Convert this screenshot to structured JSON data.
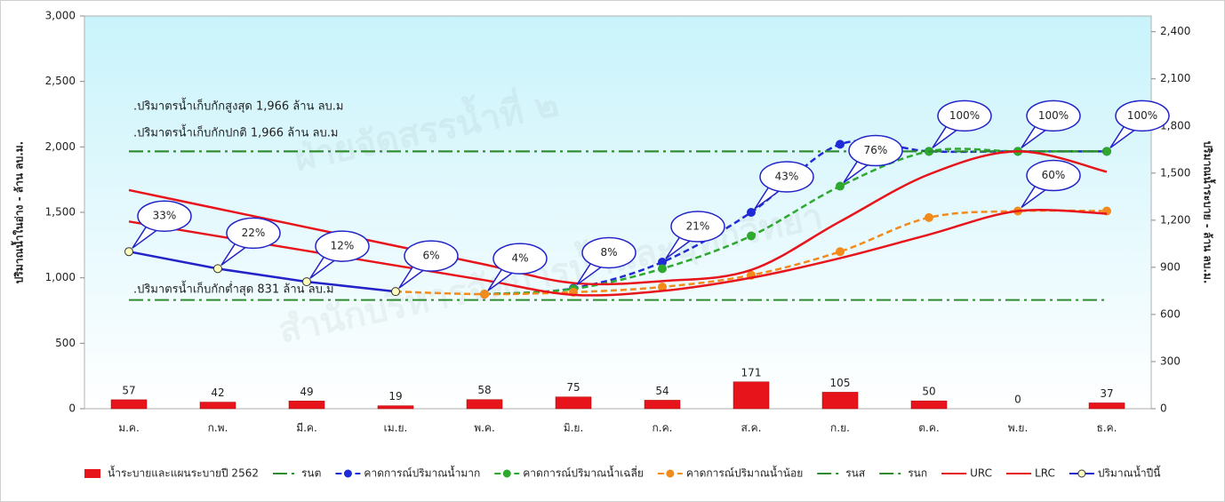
{
  "chart_data": {
    "type": "combo",
    "watermark": [
      "ฝ่ายจัดสรรน้ำที่ ๒",
      "สำนักบริหารจัดการน้ำและอุทกวิทยา"
    ],
    "ylabel": "ปริมาณน้ำในอ่าง - ล้าน ลบ.ม.",
    "y2label": "ปริมาณน้ำระบาย - ล้าน ลบ.ม.",
    "annotations": [
      ".ปริมาตรน้ำเก็บกักสูงสุด 1,966 ล้าน ลบ.ม",
      ".ปริมาตรน้ำเก็บกักปกติ 1,966 ล้าน ลบ.ม",
      ".ปริมาตรน้ำเก็บกักต่ำสุด 831 ล้าน ลบ.ม"
    ],
    "categories": [
      "ม.ค.",
      "ก.พ.",
      "มี.ค.",
      "เม.ย.",
      "พ.ค.",
      "มิ.ย.",
      "ก.ค.",
      "ส.ค.",
      "ก.ย.",
      "ต.ค.",
      "พ.ย.",
      "ธ.ค."
    ],
    "ylim": [
      0,
      3000
    ],
    "yticks": [
      0,
      500,
      {
        "value": 1000,
        "label": "1,000"
      },
      {
        "value": 1500,
        "label": "1,500"
      },
      {
        "value": 2000,
        "label": "2,000"
      },
      {
        "value": 2500,
        "label": "2,500"
      },
      {
        "value": 3000,
        "label": "3,000"
      }
    ],
    "y2lim": [
      0,
      2500
    ],
    "y2ticks": [
      0,
      300,
      600,
      900,
      {
        "value": 1200,
        "label": "1,200"
      },
      {
        "value": 1500,
        "label": "1,500"
      },
      {
        "value": 1800,
        "label": "1,800"
      },
      {
        "value": 2100,
        "label": "2,100"
      },
      {
        "value": 2400,
        "label": "2,400"
      }
    ],
    "grid": false,
    "legend": "bottom",
    "series": [
      {
        "name": "น้ำระบายและแผนระบายปี 2562",
        "type": "bar",
        "axis": "y2",
        "color": "#e8141b",
        "values": [
          57,
          42,
          49,
          19,
          58,
          75,
          54,
          171,
          105,
          50,
          0,
          37
        ]
      },
      {
        "name": "รนต",
        "type": "line",
        "style": "dash-dot",
        "color": "#2e8b2e",
        "values": [
          831,
          831,
          831,
          831,
          831,
          831,
          831,
          831,
          831,
          831,
          831,
          831
        ]
      },
      {
        "name": "คาดการณ์ปริมาณน้ำมาก",
        "type": "line",
        "style": "dashed",
        "marker": true,
        "smooth": true,
        "color": "#1f2bd6",
        "values": [
          null,
          null,
          null,
          null,
          875,
          920,
          1120,
          1500,
          2020,
          1966,
          1966,
          1966
        ],
        "point_labels": [
          null,
          null,
          null,
          null,
          "4%",
          "8%",
          "21%",
          "43%",
          null,
          null,
          "100%",
          null
        ]
      },
      {
        "name": "คาดการณ์ปริมาณน้ำเฉลี่ย",
        "type": "line",
        "style": "dashed",
        "marker": true,
        "smooth": true,
        "color": "#2ea82e",
        "values": [
          null,
          null,
          null,
          null,
          875,
          915,
          1070,
          1320,
          1700,
          1966,
          1966,
          1966
        ],
        "point_labels": [
          null,
          null,
          null,
          null,
          null,
          null,
          null,
          null,
          "76%",
          "100%",
          null,
          "100%"
        ]
      },
      {
        "name": "คาดการณ์ปริมาณน้ำน้อย",
        "type": "line",
        "style": "dashed",
        "marker": true,
        "smooth": true,
        "color": "#f28a1c",
        "values": [
          null,
          null,
          null,
          895,
          875,
          890,
          930,
          1020,
          1200,
          1460,
          1510,
          1510
        ],
        "point_labels": [
          null,
          null,
          null,
          null,
          null,
          null,
          null,
          null,
          null,
          null,
          "60%",
          null
        ]
      },
      {
        "name": "รนส",
        "type": "line",
        "style": "dash-dot",
        "color": "#2e8b2e",
        "values": [
          1966,
          1966,
          1966,
          1966,
          1966,
          1966,
          1966,
          1966,
          1966,
          1966,
          1966,
          1966
        ]
      },
      {
        "name": "รนก",
        "type": "line",
        "style": "dash-dot",
        "color": "#2e8b2e",
        "values": [
          1966,
          1966,
          1966,
          1966,
          1966,
          1966,
          1966,
          1966,
          1966,
          1966,
          1966,
          1966
        ]
      },
      {
        "name": "URC",
        "type": "line",
        "style": "solid",
        "smooth": true,
        "color": "#e8141b",
        "values": [
          1670,
          1528,
          1386,
          1244,
          1102,
          960,
          975,
          1060,
          1430,
          1790,
          1966,
          1810
        ]
      },
      {
        "name": "LRC",
        "type": "line",
        "style": "solid",
        "smooth": true,
        "color": "#e8141b",
        "values": [
          1430,
          1318,
          1206,
          1094,
          982,
          870,
          900,
          1000,
          1150,
          1330,
          1510,
          1490
        ]
      },
      {
        "name": "ปริมาณน้ำปีนี้",
        "type": "line",
        "style": "solid",
        "marker": true,
        "marker_fill": "#ffffc0",
        "color": "#2323c8",
        "values": [
          1200,
          1070,
          970,
          895,
          null,
          null,
          null,
          null,
          null,
          null,
          null,
          null
        ],
        "point_labels": [
          "33%",
          "22%",
          "12%",
          "6%",
          null,
          null,
          null,
          null,
          null,
          null,
          null,
          null
        ]
      }
    ]
  }
}
